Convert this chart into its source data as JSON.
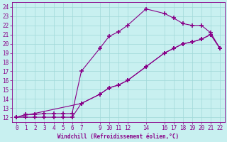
{
  "xlabel": "Windchill (Refroidissement éolien,°C)",
  "background_color": "#c8f0f0",
  "grid_color": "#a0d8d8",
  "line_color": "#880088",
  "marker": "+",
  "xlim": [
    -0.5,
    22.5
  ],
  "ylim": [
    11.5,
    24.5
  ],
  "xticks": [
    0,
    1,
    2,
    3,
    4,
    5,
    6,
    7,
    9,
    10,
    11,
    12,
    14,
    16,
    17,
    18,
    19,
    20,
    21,
    22
  ],
  "yticks": [
    12,
    13,
    14,
    15,
    16,
    17,
    18,
    19,
    20,
    21,
    22,
    23,
    24
  ],
  "lines": [
    {
      "x": [
        0,
        1,
        2,
        3,
        4,
        5,
        6,
        7,
        9,
        10,
        11,
        12,
        14,
        16,
        17,
        18,
        19,
        20,
        21,
        22
      ],
      "y": [
        12,
        12.3,
        12.3,
        12.4,
        12.4,
        12.4,
        12.4,
        17,
        19.5,
        20.8,
        21.3,
        22,
        23.8,
        23.3,
        22.8,
        22.2,
        22,
        22,
        21.2,
        19.5
      ]
    },
    {
      "x": [
        0,
        1,
        2,
        3,
        4,
        5,
        6,
        7,
        9,
        10,
        11,
        12,
        14,
        16,
        17,
        18,
        19,
        20,
        21,
        22
      ],
      "y": [
        12,
        12,
        12,
        12,
        12,
        12,
        12,
        13.5,
        14.5,
        15.2,
        15.5,
        16,
        17.5,
        19,
        19.5,
        20,
        20.2,
        20.5,
        21,
        19.5
      ]
    },
    {
      "x": [
        0,
        7,
        9,
        10,
        11,
        12,
        14,
        16,
        17,
        18,
        19,
        20,
        21,
        22
      ],
      "y": [
        12,
        13.5,
        14.5,
        15.2,
        15.5,
        16,
        17.5,
        19,
        19.5,
        20,
        20.2,
        20.5,
        21,
        19.5
      ]
    }
  ]
}
